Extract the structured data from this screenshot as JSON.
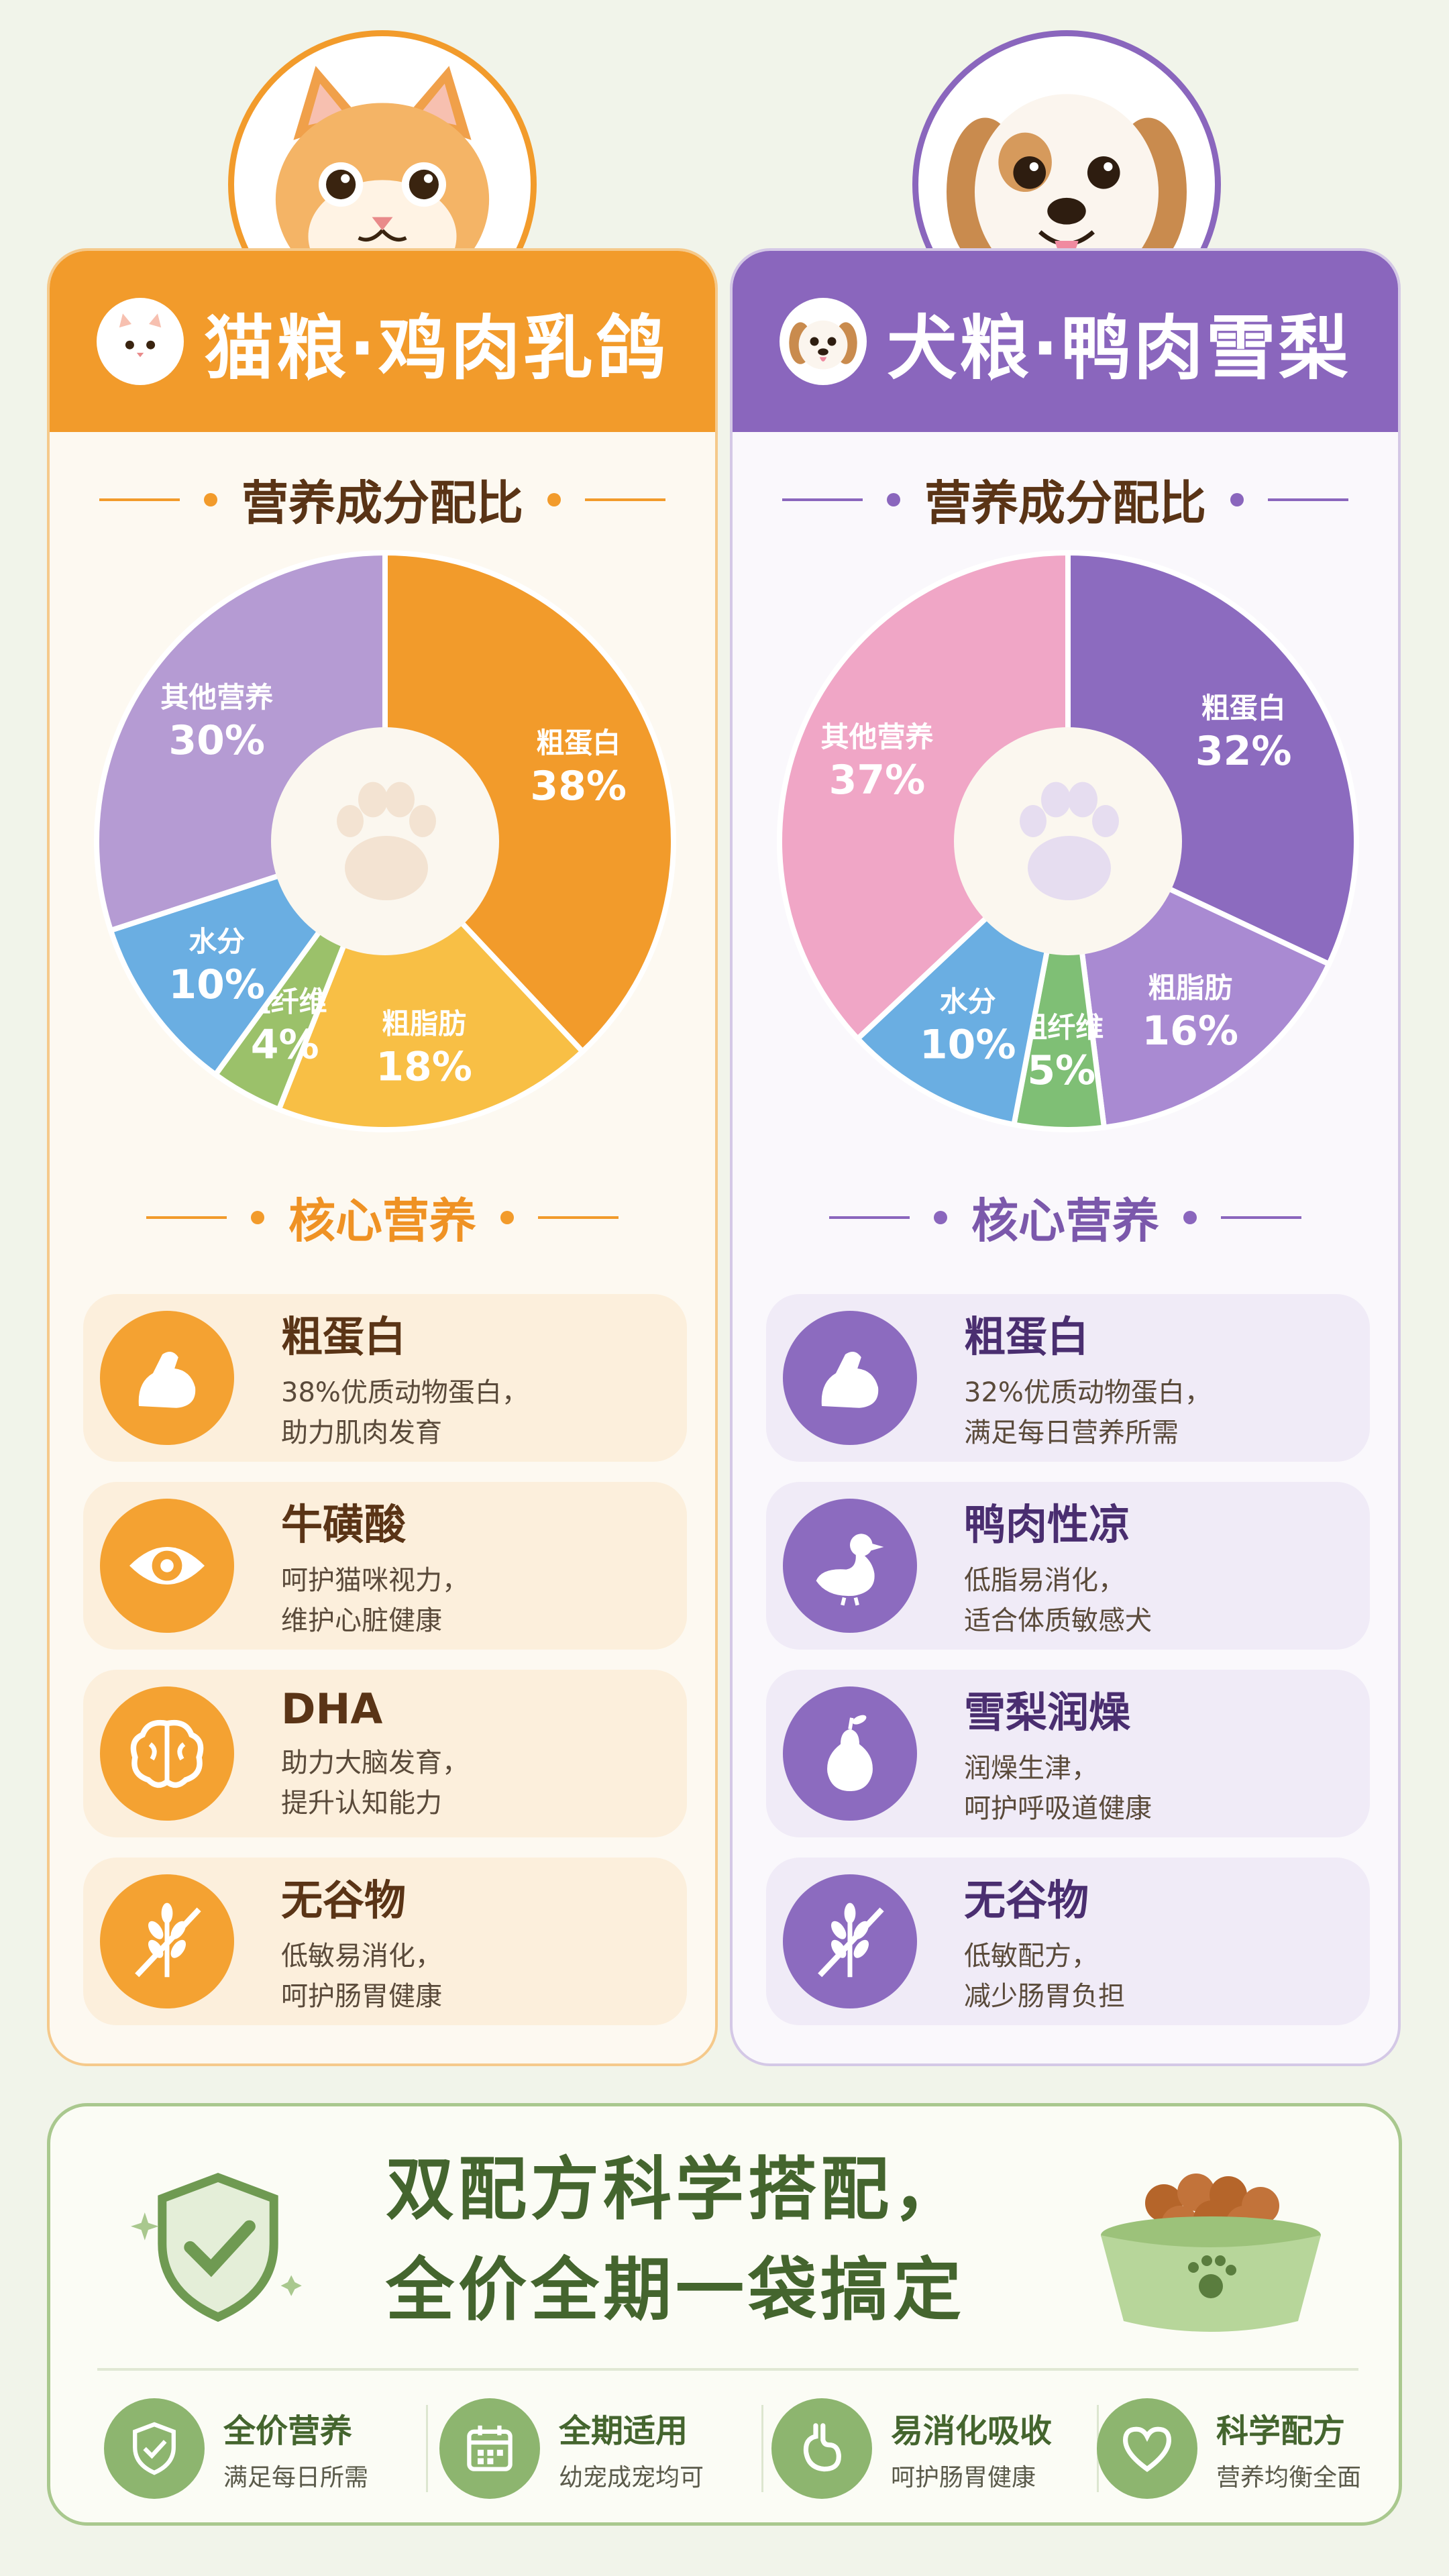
{
  "cat": {
    "title": "猫粮·鸡肉乳鸽",
    "ratio_title": "营养成分配比",
    "core_title": "核心营养",
    "nutrients": [
      {
        "name": "粗蛋白",
        "desc": "38%优质动物蛋白，\n助力肌肉发育",
        "icon": "muscle-icon"
      },
      {
        "name": "牛磺酸",
        "desc": "呵护猫咪视力，\n维护心脏健康",
        "icon": "eye-icon"
      },
      {
        "name": "DHA",
        "desc": "助力大脑发育，\n提升认知能力",
        "icon": "brain-icon"
      },
      {
        "name": "无谷物",
        "desc": "低敏易消化，\n呵护肠胃健康",
        "icon": "no-grain-icon"
      }
    ]
  },
  "dog": {
    "title": "犬粮·鸭肉雪梨",
    "ratio_title": "营养成分配比",
    "core_title": "核心营养",
    "nutrients": [
      {
        "name": "粗蛋白",
        "desc": "32%优质动物蛋白，\n满足每日营养所需",
        "icon": "muscle-icon"
      },
      {
        "name": "鸭肉性凉",
        "desc": "低脂易消化，\n适合体质敏感犬",
        "icon": "duck-icon"
      },
      {
        "name": "雪梨润燥",
        "desc": "润燥生津，\n呵护呼吸道健康",
        "icon": "pear-icon"
      },
      {
        "name": "无谷物",
        "desc": "低敏配方，\n减少肠胃负担",
        "icon": "no-grain-icon"
      }
    ]
  },
  "chart_data": [
    {
      "type": "pie",
      "title": "营养成分配比",
      "slices": [
        {
          "label": "粗蛋白",
          "value": 38,
          "pct": "38%",
          "color": "#f29b2b"
        },
        {
          "label": "粗脂肪",
          "value": 18,
          "pct": "18%",
          "color": "#f8bf45"
        },
        {
          "label": "粗纤维",
          "value": 4,
          "pct": "4%",
          "color": "#9bc16a"
        },
        {
          "label": "水分",
          "value": 10,
          "pct": "10%",
          "color": "#6aaee2"
        },
        {
          "label": "其他营养",
          "value": 30,
          "pct": "30%",
          "color": "#b59bd3"
        }
      ]
    },
    {
      "type": "pie",
      "title": "营养成分配比",
      "slices": [
        {
          "label": "粗蛋白",
          "value": 32,
          "pct": "32%",
          "color": "#8c6bbf"
        },
        {
          "label": "粗脂肪",
          "value": 16,
          "pct": "16%",
          "color": "#a98ad2"
        },
        {
          "label": "粗纤维",
          "value": 5,
          "pct": "5%",
          "color": "#7fbf75"
        },
        {
          "label": "水分",
          "value": 10,
          "pct": "10%",
          "color": "#6aaee2"
        },
        {
          "label": "其他营养",
          "value": 37,
          "pct": "37%",
          "color": "#f0a6c6"
        }
      ]
    }
  ],
  "bottom": {
    "slogan_line1": "双配方科学搭配，",
    "slogan_line2": "全价全期一袋搞定",
    "features": [
      {
        "name": "全价营养",
        "desc": "满足每日所需",
        "icon": "shield-check-icon"
      },
      {
        "name": "全期适用",
        "desc": "幼宠成宠均可",
        "icon": "calendar-icon"
      },
      {
        "name": "易消化吸收",
        "desc": "呵护肠胃健康",
        "icon": "stomach-icon"
      },
      {
        "name": "科学配方",
        "desc": "营养均衡全面",
        "icon": "heart-icon"
      }
    ]
  }
}
